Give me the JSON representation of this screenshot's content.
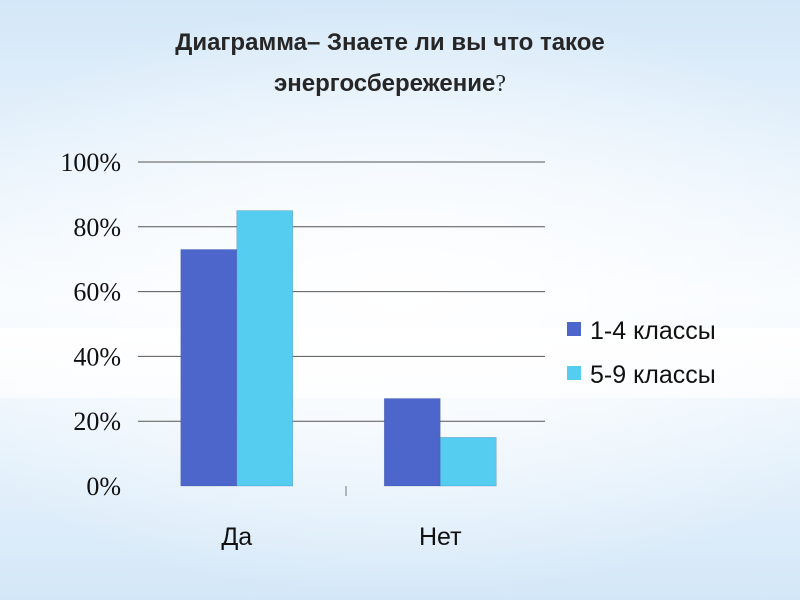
{
  "title": {
    "line1": "Диаграмма– Знаете ли вы что такое",
    "line2": "энергосбережение",
    "question_mark": "?"
  },
  "chart_data": {
    "type": "bar",
    "title": "Диаграмма– Знаете ли вы что такое энергосбережение?",
    "categories": [
      "Да",
      "Нет"
    ],
    "series": [
      {
        "name": "1-4 классы",
        "values": [
          73,
          27
        ],
        "color": "#4d66cc"
      },
      {
        "name": "5-9 классы",
        "values": [
          85,
          15
        ],
        "color": "#55cdf0"
      }
    ],
    "ylim": [
      0,
      100
    ],
    "yticks": [
      "0%",
      "20%",
      "40%",
      "60%",
      "80%",
      "100%"
    ],
    "yunit": "%",
    "grid": true,
    "legend": "right",
    "xlabel": "",
    "ylabel": ""
  }
}
